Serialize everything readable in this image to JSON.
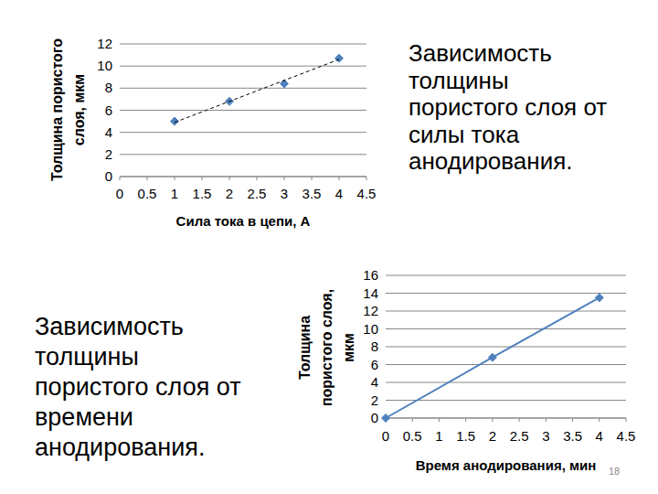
{
  "chart_data": [
    {
      "type": "scatter",
      "title": [
        "Зависимость",
        "толщины",
        "пористого слоя от",
        "силы тока",
        "анодирования."
      ],
      "x_label": "Сила тока в цепи, А",
      "y_label": [
        "Толщина пористого",
        "слоя, мкм"
      ],
      "xlim": [
        0,
        4.5
      ],
      "xticks": [
        0,
        0.5,
        1,
        1.5,
        2,
        2.5,
        3,
        3.5,
        4,
        4.5
      ],
      "ylim": [
        0,
        12
      ],
      "yticks": [
        0,
        2,
        4,
        6,
        8,
        10,
        12
      ],
      "grid": true,
      "series": [
        {
          "type": "scatter",
          "marker": "diamond",
          "color": "#4f81bd",
          "x": [
            1,
            2,
            3,
            4
          ],
          "values": [
            5.0,
            6.8,
            8.4,
            10.7
          ]
        },
        {
          "type": "line",
          "line_style": "dashed",
          "color": "#000000",
          "x": [
            1,
            4
          ],
          "values": [
            4.9,
            10.6
          ]
        }
      ]
    },
    {
      "type": "line",
      "title": [
        "Зависимость",
        "толщины",
        "пористого слоя от",
        "времени",
        "анодирования."
      ],
      "x_label": "Время анодирования, мин",
      "y_label": [
        "Толщина",
        "пористого слоя,",
        "мкм"
      ],
      "xlim": [
        0,
        4.5
      ],
      "xticks": [
        0,
        0.5,
        1,
        1.5,
        2,
        2.5,
        3,
        3.5,
        4,
        4.5
      ],
      "ylim": [
        0,
        16
      ],
      "yticks": [
        0,
        2,
        4,
        6,
        8,
        10,
        12,
        14,
        16
      ],
      "grid": true,
      "series": [
        {
          "type": "line",
          "marker": "diamond",
          "line_style": "solid",
          "color": "#4f81bd",
          "x": [
            0,
            2,
            4
          ],
          "values": [
            0,
            6.8,
            13.5
          ]
        }
      ]
    }
  ],
  "page_number": "18"
}
